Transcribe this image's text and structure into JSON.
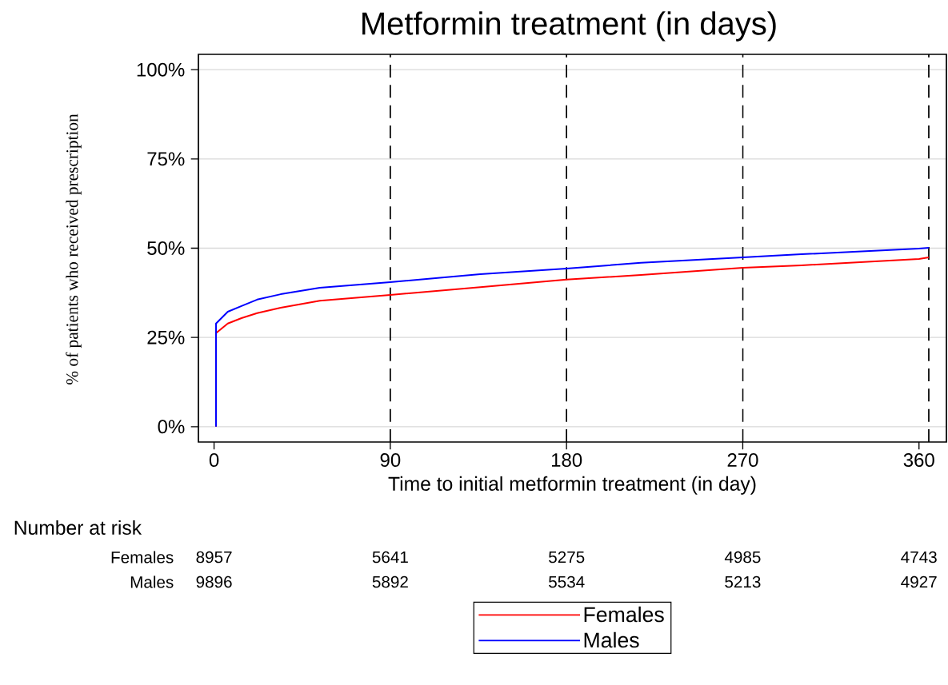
{
  "chart_data": {
    "type": "line",
    "title": "Metformin treatment (in days)",
    "xlabel": "Time to initial metformin treatment (in day)",
    "ylabel": "% of patients who received prescription",
    "xlim": [
      -8,
      374
    ],
    "ylim": [
      -4.3,
      104.3
    ],
    "xticks": [
      0,
      90,
      180,
      270,
      360
    ],
    "yticks": [
      {
        "value": 0,
        "label": "0%"
      },
      {
        "value": 25,
        "label": "25%"
      },
      {
        "value": 50,
        "label": "50%"
      },
      {
        "value": 75,
        "label": "75%"
      },
      {
        "value": 100,
        "label": "100%"
      }
    ],
    "grid": "y",
    "legend": "bottom",
    "line_style": "solid",
    "marker": "none",
    "series": [
      {
        "name": "Females",
        "color": "#ff0000",
        "x": [
          1,
          1,
          7,
          14,
          22,
          34,
          54,
          90,
          136,
          180,
          218,
          270,
          300,
          360,
          365
        ],
        "values": [
          0,
          26.2,
          28.9,
          30.4,
          31.8,
          33.3,
          35.3,
          36.9,
          39.1,
          41.2,
          42.5,
          44.5,
          45.2,
          47.0,
          47.4
        ]
      },
      {
        "name": "Males",
        "color": "#0000ff",
        "x": [
          1,
          1,
          7,
          14,
          22,
          34,
          54,
          90,
          136,
          180,
          218,
          270,
          300,
          360,
          365
        ],
        "values": [
          0,
          28.9,
          32.2,
          33.8,
          35.6,
          37.1,
          38.9,
          40.5,
          42.7,
          44.3,
          45.9,
          47.4,
          48.3,
          49.9,
          50.1
        ]
      }
    ],
    "ref_lines": [
      {
        "axis": "x",
        "value": 90,
        "color": "#000000",
        "line_style": "dashed"
      },
      {
        "axis": "x",
        "value": 180,
        "color": "#000000",
        "line_style": "dashed"
      },
      {
        "axis": "x",
        "value": 270,
        "color": "#000000",
        "line_style": "dashed"
      },
      {
        "axis": "x",
        "value": 365,
        "color": "#000000",
        "line_style": "dashed"
      }
    ],
    "annotations": [
      "Number at risk",
      "Females",
      "8957",
      "5641",
      "5275",
      "4985",
      "4743",
      "Males",
      "9896",
      "5892",
      "5534",
      "5213",
      "4927"
    ]
  }
}
